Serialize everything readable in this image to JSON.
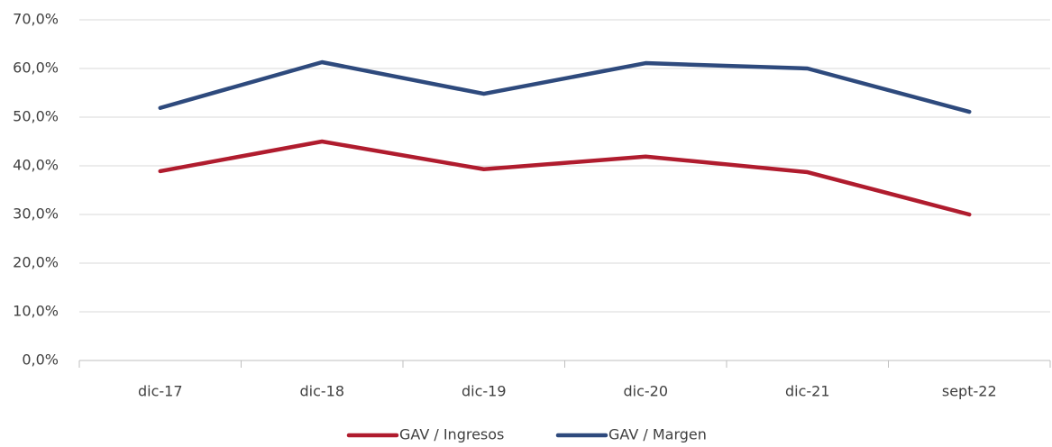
{
  "chart_data": {
    "type": "line",
    "categories": [
      "dic-17",
      "dic-18",
      "dic-19",
      "dic-20",
      "dic-21",
      "sept-22"
    ],
    "series": [
      {
        "name": "GAV / Ingresos",
        "color": "#b01c2e",
        "values": [
          38.9,
          45.0,
          39.3,
          41.9,
          38.7,
          30.0
        ]
      },
      {
        "name": "GAV / Margen",
        "color": "#2e4a7d",
        "values": [
          51.9,
          61.3,
          54.8,
          61.1,
          60.0,
          51.1
        ]
      }
    ],
    "ylim": [
      0,
      70
    ],
    "yticks": [
      {
        "value": 0,
        "label": "0,0%"
      },
      {
        "value": 10,
        "label": "10,0%"
      },
      {
        "value": 20,
        "label": "20,0%"
      },
      {
        "value": 30,
        "label": "30,0%"
      },
      {
        "value": 40,
        "label": "40,0%"
      },
      {
        "value": 50,
        "label": "50,0%"
      },
      {
        "value": 60,
        "label": "60,0%"
      },
      {
        "value": 70,
        "label": "70,0%"
      }
    ],
    "grid": true,
    "legend": "bottom"
  }
}
